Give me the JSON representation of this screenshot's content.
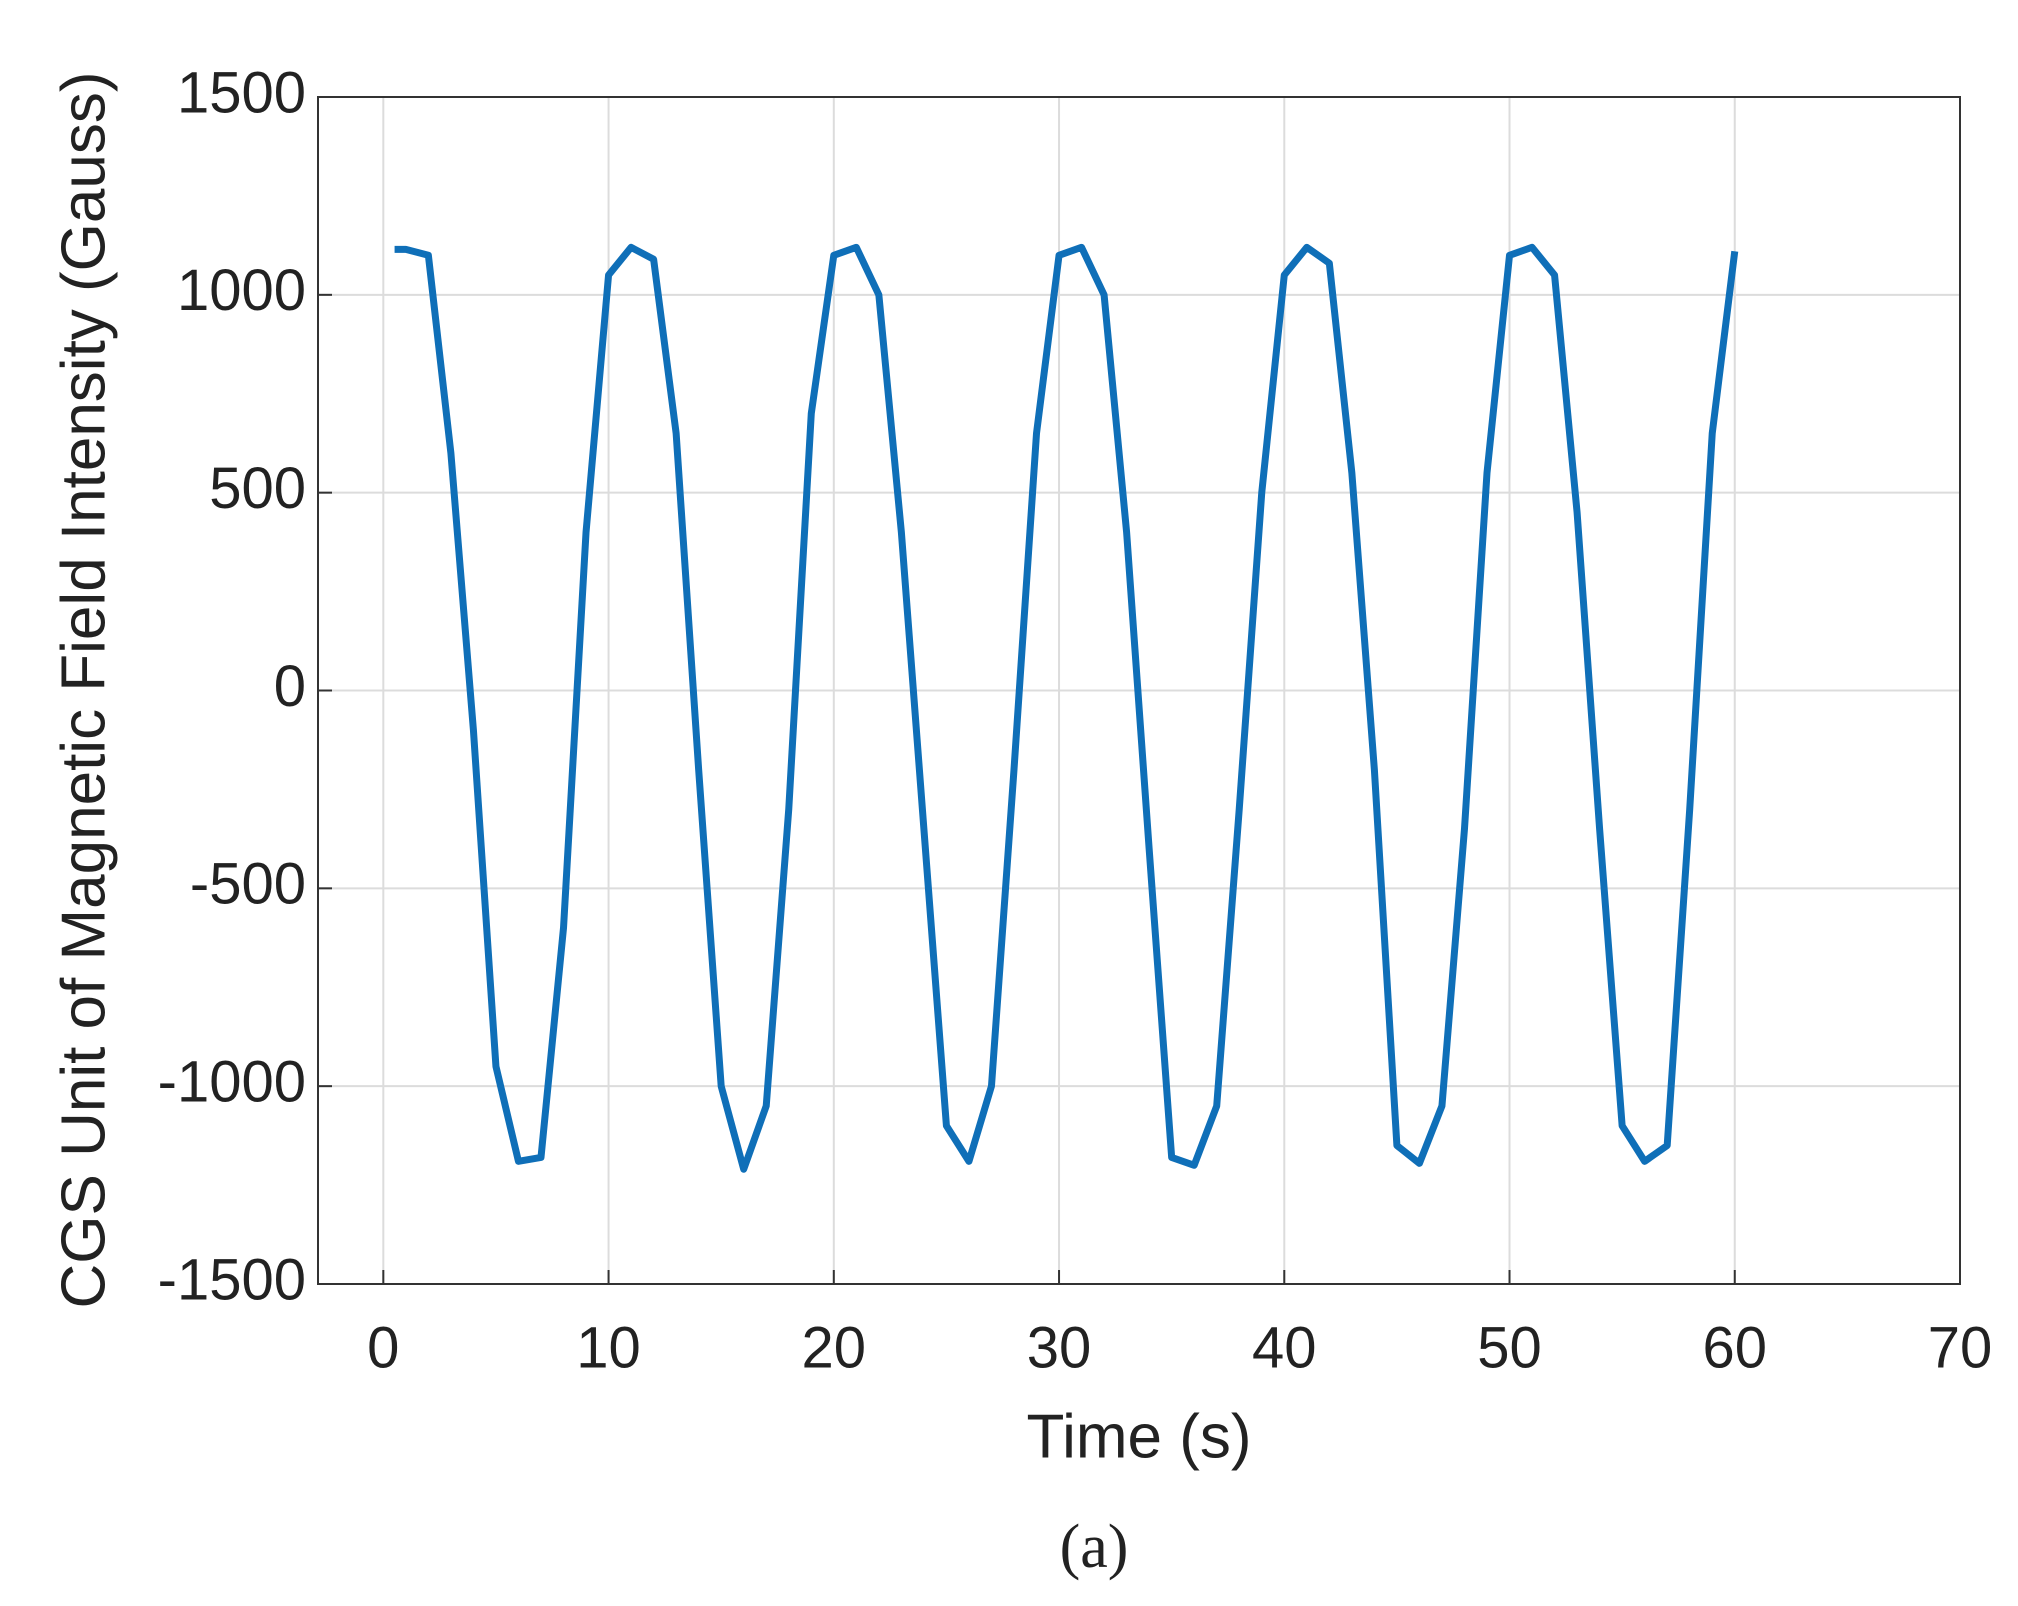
{
  "chart_data": {
    "type": "line",
    "x_label": "Time (s)",
    "y_label": "CGS Unit of Magnetic Field Intensity (Gauss)",
    "caption": "(a)",
    "x": [
      0.5,
      1,
      2,
      3,
      4,
      5,
      6,
      7,
      8,
      9,
      10,
      11,
      12,
      13,
      14,
      15,
      16,
      17,
      18,
      19,
      20,
      21,
      22,
      23,
      24,
      25,
      26,
      27,
      28,
      29,
      30,
      31,
      32,
      33,
      34,
      35,
      36,
      37,
      38,
      39,
      40,
      41,
      42,
      43,
      44,
      45,
      46,
      47,
      48,
      49,
      50,
      51,
      52,
      53,
      54,
      55,
      56,
      57,
      58,
      59,
      60
    ],
    "series": [
      {
        "color": "#0f6fb8",
        "values": [
          1115,
          1115,
          1100,
          600,
          -100,
          -950,
          -1190,
          -1180,
          -600,
          400,
          1050,
          1120,
          1090,
          650,
          -200,
          -1000,
          -1210,
          -1050,
          -300,
          700,
          1100,
          1120,
          1000,
          400,
          -350,
          -1100,
          -1190,
          -1000,
          -200,
          650,
          1100,
          1120,
          1000,
          400,
          -400,
          -1180,
          -1200,
          -1050,
          -300,
          500,
          1050,
          1120,
          1080,
          550,
          -200,
          -1150,
          -1195,
          -1050,
          -350,
          550,
          1100,
          1120,
          1050,
          450,
          -350,
          -1100,
          -1190,
          -1150,
          -300,
          650,
          1110
        ]
      }
    ],
    "xlim": [
      -2.9,
      70
    ],
    "ylim": [
      -1500,
      1500
    ],
    "xticks": [
      0,
      10,
      20,
      30,
      40,
      50,
      60,
      70
    ],
    "yticks": [
      -1500,
      -1000,
      -500,
      0,
      500,
      1000,
      1500
    ],
    "grid": true
  }
}
